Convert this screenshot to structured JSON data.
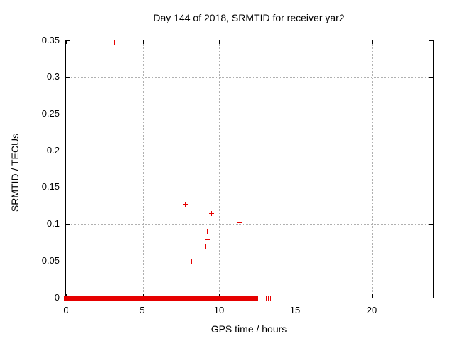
{
  "colors": {
    "marker": "#e60000",
    "grid": "#b0b0b0",
    "axis": "#000000",
    "background": "#ffffff"
  },
  "chart_data": {
    "type": "scatter",
    "title": "Day 144 of 2018, SRMTID for receiver yar2",
    "xlabel": "GPS time / hours",
    "ylabel": "SRMTID / TECUs",
    "xlim": [
      0,
      24
    ],
    "ylim": [
      0,
      0.35
    ],
    "xticks": {
      "values": [
        0,
        5,
        10,
        15,
        20
      ],
      "labels": [
        "0",
        "5",
        "10",
        "15",
        "20"
      ]
    },
    "yticks": {
      "values": [
        0,
        0.05,
        0.1,
        0.15,
        0.2,
        0.25,
        0.3,
        0.35
      ],
      "labels": [
        "0",
        "0.05",
        "0.1",
        "0.15",
        "0.2",
        "0.25",
        "0.3",
        "0.35"
      ]
    },
    "grid": true,
    "legend": "none",
    "marker": "plus",
    "series": [
      {
        "name": "SRMTID",
        "color": "#e60000",
        "points": [
          [
            3.2,
            0.347
          ],
          [
            7.78,
            0.127
          ],
          [
            8.17,
            0.089
          ],
          [
            8.2,
            0.05
          ],
          [
            9.13,
            0.069
          ],
          [
            9.24,
            0.089
          ],
          [
            9.27,
            0.079
          ],
          [
            9.5,
            0.115
          ],
          [
            11.38,
            0.102
          ]
        ]
      }
    ],
    "baseline_band": {
      "y": 0,
      "description": "dense overlapping + markers at SRMTID = 0",
      "segments_hours": [
        [
          0,
          0.56
        ],
        [
          0.73,
          0.84
        ],
        [
          0.93,
          1.02
        ],
        [
          1.16,
          1.78
        ],
        [
          1.89,
          3.29
        ],
        [
          3.44,
          3.8
        ],
        [
          3.92,
          4.06
        ],
        [
          4.29,
          5.12
        ],
        [
          5.22,
          7.16
        ],
        [
          7.26,
          7.67
        ],
        [
          7.77,
          7.95
        ],
        [
          8.05,
          8.23
        ],
        [
          8.33,
          8.51
        ],
        [
          8.6,
          8.79
        ],
        [
          8.88,
          10.09
        ],
        [
          10.19,
          10.33
        ],
        [
          10.42,
          12.38
        ]
      ],
      "isolated_points_hours": [
        12.5,
        12.65,
        12.8,
        12.95,
        13.1,
        13.25,
        13.35
      ]
    }
  }
}
